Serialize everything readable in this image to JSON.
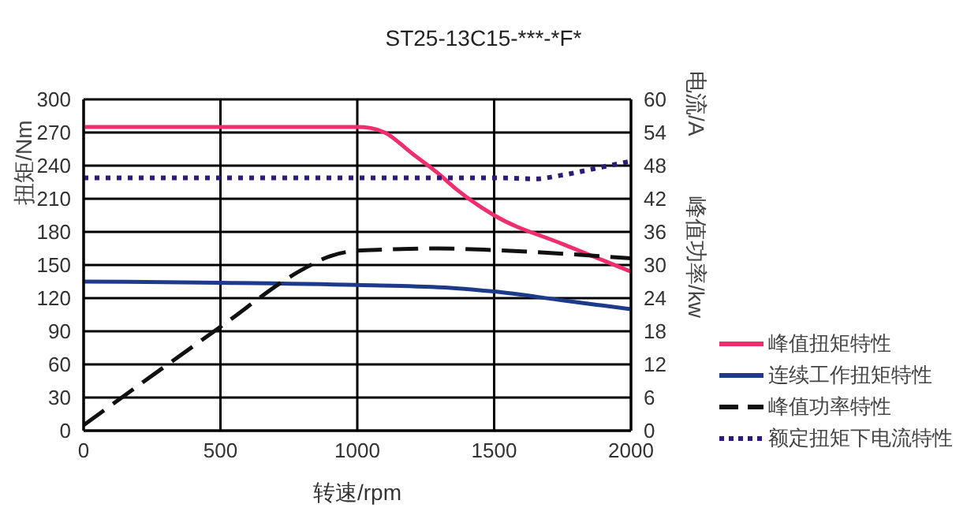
{
  "chart_data": {
    "type": "line",
    "title": "ST25-13C15-***-*F*",
    "xlabel": "转速/rpm",
    "ylabel": "扭矩/Nm",
    "y2label": "电流/A",
    "annotations": [
      "峰值功率/kw"
    ],
    "xlim": [
      0,
      2000
    ],
    "xticks": [
      0,
      500,
      1000,
      1500,
      2000
    ],
    "ylim": [
      0,
      300
    ],
    "yticks": [
      0,
      30,
      60,
      90,
      120,
      150,
      180,
      210,
      240,
      270,
      300
    ],
    "y2lim": [
      0,
      60
    ],
    "y2ticks": [
      0,
      6,
      12,
      18,
      24,
      30,
      36,
      42,
      48,
      54,
      60
    ],
    "grid": true,
    "legend": "bottom right",
    "marker": "none",
    "series": [
      {
        "name": "峰值扭矩特性",
        "color": "#ee2e6e",
        "line_style": "solid",
        "x": [
          0,
          500,
          1000,
          1050,
          1100,
          1200,
          1300,
          1360,
          1500,
          1750,
          2000
        ],
        "values": [
          275,
          275,
          275,
          274,
          270,
          251,
          232,
          219,
          195,
          169,
          144
        ]
      },
      {
        "name": "连续工作扭矩特性",
        "color": "#1e3a8a",
        "line_style": "solid",
        "x": [
          0,
          500,
          1000,
          1360,
          1500,
          1750,
          2000
        ],
        "values": [
          135,
          134,
          132,
          129,
          126,
          118,
          110
        ]
      },
      {
        "name": "峰值功率特性",
        "color": "#111111",
        "line_style": "dashed",
        "axis": "y2",
        "x": [
          0,
          500,
          800,
          900,
          1000,
          1100,
          1300,
          1500,
          2000
        ],
        "values": [
          1,
          18.8,
          29.2,
          31.6,
          32.6,
          32.8,
          33,
          32.7,
          31.2
        ]
      },
      {
        "name": "额定扭矩下电流特性",
        "color": "#2d1a7a",
        "line_style": "dotted",
        "axis": "y2",
        "x": [
          0,
          1000,
          1500,
          1650,
          1750,
          1900,
          2000
        ],
        "values": [
          45.8,
          45.8,
          45.8,
          45.6,
          46.3,
          47.8,
          48.8
        ]
      }
    ]
  }
}
